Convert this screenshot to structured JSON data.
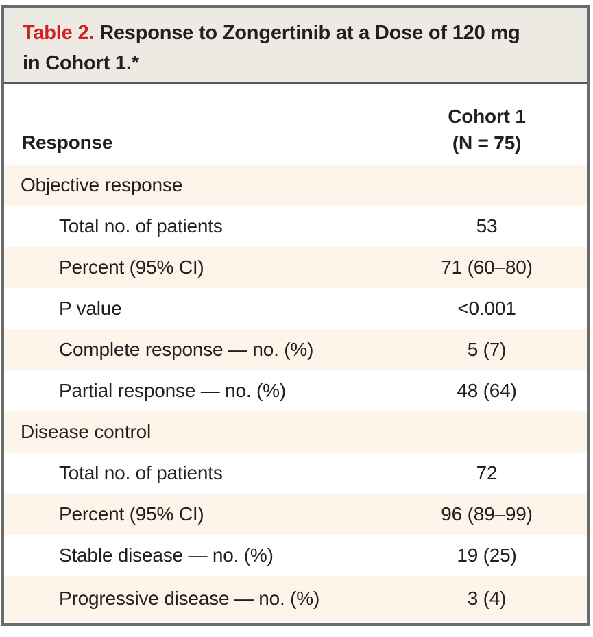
{
  "title": {
    "number": "Table 2.",
    "line1": "Response to Zongertinib at a Dose of 120 mg",
    "line2": "in Cohort 1.*"
  },
  "columns": {
    "response": "Response",
    "cohort_line1": "Cohort 1",
    "cohort_line2": "(N = 75)"
  },
  "rows": [
    {
      "label": "Objective response",
      "value": "",
      "type": "section"
    },
    {
      "label": "Total no. of patients",
      "value": "53",
      "type": "item"
    },
    {
      "label": "Percent (95% CI)",
      "value": "71 (60–80)",
      "type": "item"
    },
    {
      "label": "P value",
      "value": "<0.001",
      "type": "item"
    },
    {
      "label": "Complete response — no. (%)",
      "value": "5 (7)",
      "type": "item"
    },
    {
      "label": "Partial response — no. (%)",
      "value": "48 (64)",
      "type": "item"
    },
    {
      "label": "Disease control",
      "value": "",
      "type": "section"
    },
    {
      "label": "Total no. of patients",
      "value": "72",
      "type": "item"
    },
    {
      "label": "Percent (95% CI)",
      "value": "96 (89–99)",
      "type": "item"
    },
    {
      "label": "Stable disease — no. (%)",
      "value": "19 (25)",
      "type": "item"
    },
    {
      "label": "Progressive disease — no. (%)",
      "value": "3 (4)",
      "type": "item"
    }
  ],
  "colors": {
    "accent_red": "#CE2227",
    "title_background": "#EDE9E3",
    "row_highlight": "#FDF5E9",
    "border_gray": "#6A6B6D",
    "text": "#231F20"
  },
  "chart_data": {
    "type": "table",
    "title": "Table 2. Response to Zongertinib at a Dose of 120 mg in Cohort 1.*",
    "columns": [
      "Response",
      "Cohort 1 (N = 75)"
    ],
    "sections": [
      {
        "name": "Objective response",
        "rows": [
          [
            "Total no. of patients",
            "53"
          ],
          [
            "Percent (95% CI)",
            "71 (60–80)"
          ],
          [
            "P value",
            "<0.001"
          ],
          [
            "Complete response — no. (%)",
            "5 (7)"
          ],
          [
            "Partial response — no. (%)",
            "48 (64)"
          ]
        ]
      },
      {
        "name": "Disease control",
        "rows": [
          [
            "Total no. of patients",
            "72"
          ],
          [
            "Percent (95% CI)",
            "96 (89–99)"
          ],
          [
            "Stable disease — no. (%)",
            "19 (25)"
          ],
          [
            "Progressive disease — no. (%)",
            "3 (4)"
          ]
        ]
      }
    ]
  }
}
